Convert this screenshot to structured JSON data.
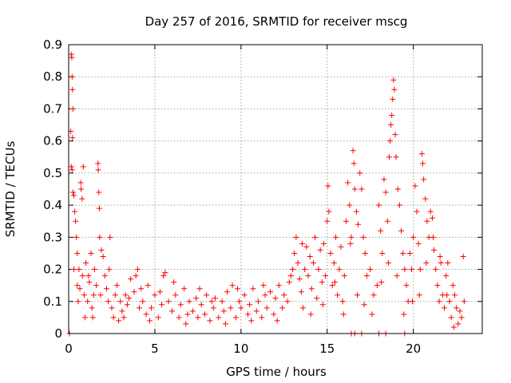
{
  "chart_data": {
    "type": "scatter",
    "title": "Day 257 of 2016, SRMTID for receiver mscg",
    "xlabel": "GPS time / hours",
    "ylabel": "SRMTID / TECUs",
    "xlim": [
      0,
      24
    ],
    "ylim": [
      0,
      0.9
    ],
    "xticks": [
      0,
      5,
      10,
      15,
      20
    ],
    "yticks": [
      0,
      0.1,
      0.2,
      0.3,
      0.4,
      0.5,
      0.6,
      0.7,
      0.8,
      0.9
    ],
    "ytick_labels": [
      "0",
      "0.1",
      "0.2",
      "0.3",
      "0.4",
      "0.5",
      "0.6",
      "0.7",
      "0.8",
      "0.9"
    ],
    "grid": true,
    "marker": "plus",
    "color": "#ff0000",
    "series": [
      {
        "name": "SRMTID",
        "points": [
          [
            0.05,
            0.0
          ],
          [
            0.12,
            0.63
          ],
          [
            0.15,
            0.87
          ],
          [
            0.18,
            0.86
          ],
          [
            0.2,
            0.8
          ],
          [
            0.22,
            0.76
          ],
          [
            0.25,
            0.7
          ],
          [
            0.22,
            0.61
          ],
          [
            0.15,
            0.52
          ],
          [
            0.2,
            0.51
          ],
          [
            0.25,
            0.44
          ],
          [
            0.3,
            0.43
          ],
          [
            0.35,
            0.38
          ],
          [
            0.4,
            0.35
          ],
          [
            0.45,
            0.3
          ],
          [
            0.3,
            0.2
          ],
          [
            0.5,
            0.25
          ],
          [
            0.6,
            0.2
          ],
          [
            0.7,
            0.47
          ],
          [
            0.72,
            0.45
          ],
          [
            0.78,
            0.42
          ],
          [
            0.85,
            0.52
          ],
          [
            0.5,
            0.15
          ],
          [
            0.65,
            0.14
          ],
          [
            0.8,
            0.18
          ],
          [
            0.9,
            0.12
          ],
          [
            1.0,
            0.22
          ],
          [
            1.1,
            0.1
          ],
          [
            1.2,
            0.16
          ],
          [
            1.3,
            0.25
          ],
          [
            1.35,
            0.08
          ],
          [
            1.4,
            0.05
          ],
          [
            1.45,
            0.12
          ],
          [
            1.5,
            0.2
          ],
          [
            1.6,
            0.15
          ],
          [
            1.7,
            0.53
          ],
          [
            1.72,
            0.51
          ],
          [
            1.75,
            0.44
          ],
          [
            1.78,
            0.39
          ],
          [
            1.8,
            0.3
          ],
          [
            1.9,
            0.26
          ],
          [
            2.0,
            0.24
          ],
          [
            2.1,
            0.18
          ],
          [
            2.2,
            0.14
          ],
          [
            2.3,
            0.1
          ],
          [
            2.4,
            0.3
          ],
          [
            2.5,
            0.08
          ],
          [
            2.6,
            0.05
          ],
          [
            2.7,
            0.12
          ],
          [
            2.8,
            0.15
          ],
          [
            3.0,
            0.1
          ],
          [
            3.1,
            0.07
          ],
          [
            3.2,
            0.05
          ],
          [
            3.3,
            0.12
          ],
          [
            3.4,
            0.09
          ],
          [
            3.6,
            0.17
          ],
          [
            3.8,
            0.13
          ],
          [
            3.9,
            0.18
          ],
          [
            4.0,
            0.2
          ],
          [
            4.1,
            0.08
          ],
          [
            4.3,
            0.1
          ],
          [
            4.5,
            0.06
          ],
          [
            4.6,
            0.15
          ],
          [
            4.8,
            0.08
          ],
          [
            5.0,
            0.12
          ],
          [
            5.2,
            0.05
          ],
          [
            5.4,
            0.09
          ],
          [
            5.5,
            0.18
          ],
          [
            5.6,
            0.19
          ],
          [
            5.8,
            0.1
          ],
          [
            6.0,
            0.07
          ],
          [
            6.2,
            0.12
          ],
          [
            6.4,
            0.05
          ],
          [
            6.5,
            0.09
          ],
          [
            6.7,
            0.14
          ],
          [
            6.9,
            0.06
          ],
          [
            7.0,
            0.1
          ],
          [
            7.2,
            0.07
          ],
          [
            7.4,
            0.11
          ],
          [
            7.5,
            0.05
          ],
          [
            7.7,
            0.09
          ],
          [
            7.9,
            0.06
          ],
          [
            8.0,
            0.12
          ],
          [
            8.2,
            0.04
          ],
          [
            8.4,
            0.08
          ],
          [
            8.5,
            0.11
          ],
          [
            8.7,
            0.05
          ],
          [
            8.9,
            0.1
          ],
          [
            9.0,
            0.07
          ],
          [
            9.2,
            0.13
          ],
          [
            9.4,
            0.08
          ],
          [
            9.5,
            0.15
          ],
          [
            9.7,
            0.05
          ],
          [
            9.9,
            0.1
          ],
          [
            10.0,
            0.08
          ],
          [
            10.2,
            0.12
          ],
          [
            10.4,
            0.06
          ],
          [
            10.5,
            0.09
          ],
          [
            10.7,
            0.14
          ],
          [
            10.9,
            0.07
          ],
          [
            11.0,
            0.1
          ],
          [
            11.2,
            0.05
          ],
          [
            11.4,
            0.12
          ],
          [
            11.5,
            0.08
          ],
          [
            11.7,
            0.13
          ],
          [
            11.9,
            0.06
          ],
          [
            12.0,
            0.11
          ],
          [
            12.2,
            0.15
          ],
          [
            12.4,
            0.08
          ],
          [
            12.5,
            0.12
          ],
          [
            12.7,
            0.1
          ],
          [
            12.9,
            0.18
          ],
          [
            13.0,
            0.2
          ],
          [
            13.1,
            0.25
          ],
          [
            13.2,
            0.3
          ],
          [
            13.3,
            0.22
          ],
          [
            13.4,
            0.17
          ],
          [
            13.5,
            0.13
          ],
          [
            13.6,
            0.08
          ],
          [
            13.7,
            0.2
          ],
          [
            13.8,
            0.27
          ],
          [
            13.9,
            0.18
          ],
          [
            14.0,
            0.24
          ],
          [
            14.1,
            0.14
          ],
          [
            14.2,
            0.22
          ],
          [
            14.3,
            0.3
          ],
          [
            14.4,
            0.11
          ],
          [
            14.5,
            0.2
          ],
          [
            14.6,
            0.26
          ],
          [
            14.7,
            0.16
          ],
          [
            14.8,
            0.28
          ],
          [
            14.9,
            0.18
          ],
          [
            15.0,
            0.35
          ],
          [
            15.05,
            0.46
          ],
          [
            15.1,
            0.38
          ],
          [
            15.2,
            0.25
          ],
          [
            15.3,
            0.15
          ],
          [
            15.4,
            0.22
          ],
          [
            15.5,
            0.3
          ],
          [
            15.6,
            0.12
          ],
          [
            15.7,
            0.2
          ],
          [
            15.8,
            0.27
          ],
          [
            15.9,
            0.1
          ],
          [
            16.0,
            0.18
          ],
          [
            16.1,
            0.35
          ],
          [
            16.2,
            0.47
          ],
          [
            16.3,
            0.4
          ],
          [
            16.4,
            0.3
          ],
          [
            16.5,
            0.57
          ],
          [
            16.55,
            0.53
          ],
          [
            16.6,
            0.45
          ],
          [
            16.7,
            0.38
          ],
          [
            16.8,
            0.34
          ],
          [
            16.9,
            0.5
          ],
          [
            17.0,
            0.45
          ],
          [
            17.1,
            0.3
          ],
          [
            17.2,
            0.25
          ],
          [
            17.3,
            0.18
          ],
          [
            16.4,
            0.0
          ],
          [
            16.6,
            0.0
          ],
          [
            17.0,
            0.0
          ],
          [
            17.5,
            0.2
          ],
          [
            17.7,
            0.12
          ],
          [
            17.9,
            0.15
          ],
          [
            18.0,
            0.4
          ],
          [
            18.1,
            0.32
          ],
          [
            18.2,
            0.25
          ],
          [
            18.3,
            0.48
          ],
          [
            18.4,
            0.44
          ],
          [
            18.5,
            0.35
          ],
          [
            18.6,
            0.55
          ],
          [
            18.65,
            0.6
          ],
          [
            18.7,
            0.65
          ],
          [
            18.75,
            0.68
          ],
          [
            18.8,
            0.73
          ],
          [
            18.85,
            0.79
          ],
          [
            18.9,
            0.76
          ],
          [
            18.95,
            0.62
          ],
          [
            19.0,
            0.55
          ],
          [
            19.1,
            0.45
          ],
          [
            19.2,
            0.4
          ],
          [
            19.3,
            0.32
          ],
          [
            19.4,
            0.25
          ],
          [
            18.0,
            0.0
          ],
          [
            18.4,
            0.0
          ],
          [
            19.5,
            0.0
          ],
          [
            19.5,
            0.2
          ],
          [
            19.6,
            0.15
          ],
          [
            19.7,
            0.1
          ],
          [
            19.8,
            0.25
          ],
          [
            19.9,
            0.2
          ],
          [
            20.0,
            0.3
          ],
          [
            20.1,
            0.46
          ],
          [
            20.2,
            0.38
          ],
          [
            20.3,
            0.28
          ],
          [
            20.4,
            0.2
          ],
          [
            20.5,
            0.56
          ],
          [
            20.55,
            0.53
          ],
          [
            20.6,
            0.48
          ],
          [
            20.7,
            0.42
          ],
          [
            20.8,
            0.35
          ],
          [
            20.9,
            0.3
          ],
          [
            21.0,
            0.38
          ],
          [
            21.1,
            0.36
          ],
          [
            21.2,
            0.26
          ],
          [
            21.3,
            0.2
          ],
          [
            21.4,
            0.15
          ],
          [
            21.5,
            0.1
          ],
          [
            21.6,
            0.22
          ],
          [
            21.7,
            0.12
          ],
          [
            21.8,
            0.08
          ],
          [
            21.9,
            0.18
          ],
          [
            22.0,
            0.22
          ],
          [
            22.1,
            0.1
          ],
          [
            22.2,
            0.05
          ],
          [
            22.3,
            0.15
          ],
          [
            22.4,
            0.12
          ],
          [
            22.5,
            0.08
          ],
          [
            22.6,
            0.03
          ],
          [
            22.7,
            0.07
          ],
          [
            22.8,
            0.05
          ],
          [
            22.9,
            0.24
          ],
          [
            22.95,
            0.1
          ],
          [
            0.55,
            0.1
          ],
          [
            0.95,
            0.05
          ],
          [
            1.15,
            0.18
          ],
          [
            1.85,
            0.12
          ],
          [
            2.35,
            0.2
          ],
          [
            2.9,
            0.04
          ],
          [
            3.5,
            0.11
          ],
          [
            4.2,
            0.14
          ],
          [
            4.7,
            0.04
          ],
          [
            5.3,
            0.13
          ],
          [
            6.1,
            0.16
          ],
          [
            6.8,
            0.03
          ],
          [
            7.6,
            0.14
          ],
          [
            8.3,
            0.1
          ],
          [
            9.1,
            0.03
          ],
          [
            9.8,
            0.14
          ],
          [
            10.6,
            0.04
          ],
          [
            11.3,
            0.15
          ],
          [
            12.1,
            0.04
          ],
          [
            12.8,
            0.16
          ],
          [
            13.55,
            0.28
          ],
          [
            14.05,
            0.06
          ],
          [
            14.75,
            0.09
          ],
          [
            15.45,
            0.16
          ],
          [
            15.95,
            0.06
          ],
          [
            16.35,
            0.28
          ],
          [
            16.75,
            0.12
          ],
          [
            17.15,
            0.09
          ],
          [
            17.6,
            0.06
          ],
          [
            18.15,
            0.16
          ],
          [
            18.55,
            0.22
          ],
          [
            19.05,
            0.18
          ],
          [
            19.45,
            0.06
          ],
          [
            19.95,
            0.1
          ],
          [
            20.35,
            0.12
          ],
          [
            20.75,
            0.22
          ],
          [
            21.15,
            0.3
          ],
          [
            21.55,
            0.24
          ],
          [
            21.95,
            0.12
          ],
          [
            22.35,
            0.02
          ]
        ]
      }
    ]
  }
}
